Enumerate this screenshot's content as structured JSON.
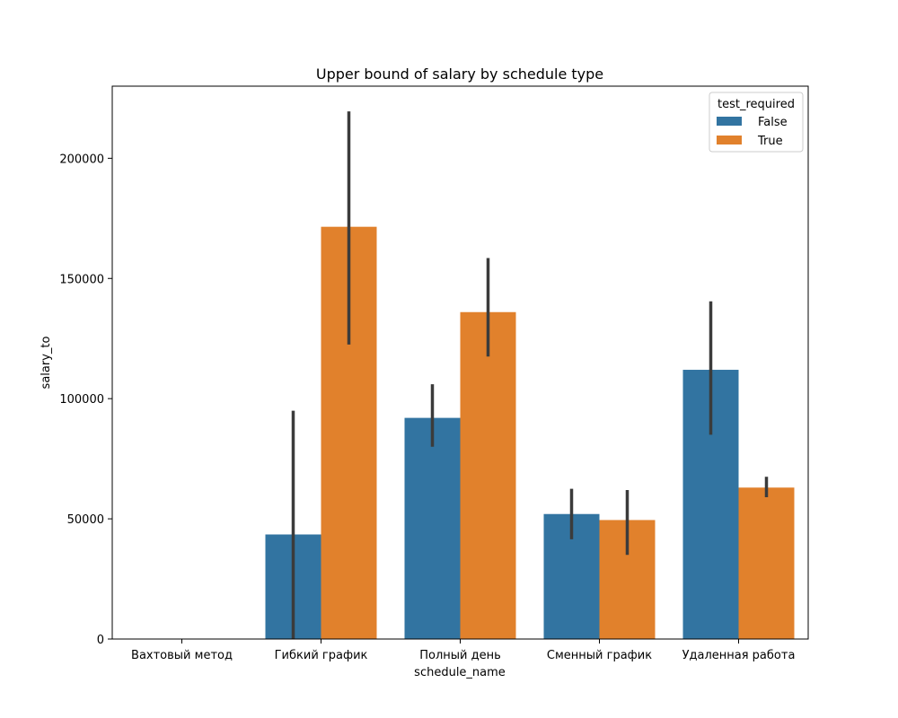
{
  "chart_data": {
    "type": "bar",
    "title": "Upper bound of salary by schedule type",
    "xlabel": "schedule_name",
    "ylabel": "salary_to",
    "categories": [
      "Вахтовый метод",
      "Гибкий график",
      "Полный день",
      "Сменный график",
      "Удаленная работа"
    ],
    "ylim": [
      0,
      230000
    ],
    "yticks": [
      0,
      50000,
      100000,
      150000,
      200000
    ],
    "legend": {
      "title": "test_required",
      "placement": "upper right"
    },
    "series": [
      {
        "name": "False",
        "color": "#3274a1",
        "values": [
          null,
          43500,
          92000,
          52000,
          112000
        ],
        "error_low": [
          null,
          0,
          80000,
          41500,
          85000
        ],
        "error_high": [
          null,
          95000,
          106000,
          62500,
          140500
        ]
      },
      {
        "name": "True",
        "color": "#e1812c",
        "values": [
          null,
          171500,
          136000,
          49500,
          63000
        ],
        "error_low": [
          null,
          122500,
          117500,
          35000,
          59000
        ],
        "error_high": [
          null,
          219500,
          158500,
          62000,
          67500
        ]
      }
    ],
    "errorbar_color": "#3b3b3b",
    "grid": false
  }
}
